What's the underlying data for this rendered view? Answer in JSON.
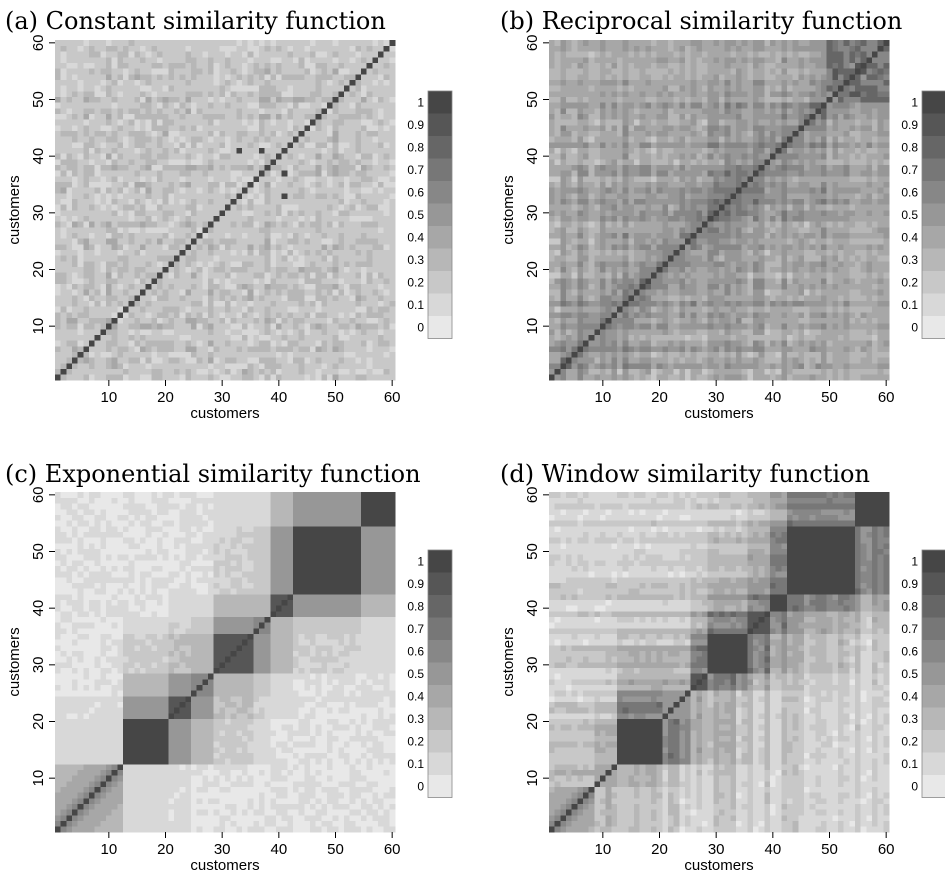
{
  "chart_data": [
    {
      "type": "heatmap",
      "title": "(a) Constant similarity function",
      "xlabel": "customers",
      "ylabel": "customers",
      "n": 60,
      "xlim": [
        1,
        60
      ],
      "ylim": [
        1,
        60
      ],
      "x_ticks": [
        10,
        20,
        30,
        40,
        50,
        60
      ],
      "y_ticks": [
        10,
        20,
        30,
        40,
        50,
        60
      ],
      "colorbar": {
        "levels": [
          0,
          0.1,
          0.2,
          0.3,
          0.4,
          0.5,
          0.6,
          0.7,
          0.8,
          0.9,
          1
        ],
        "labels": [
          "0",
          "0.1",
          "0.2",
          "0.3",
          "0.4",
          "0.5",
          "0.6",
          "0.7",
          "0.8",
          "0.9",
          "1"
        ],
        "range": [
          0,
          1
        ]
      },
      "pattern": "random",
      "diagonal": 1,
      "base": 0.12,
      "spread": 0.22,
      "seed": 7,
      "blocks": [],
      "outliers": [
        {
          "i": 33,
          "j": 41,
          "v": 1
        },
        {
          "i": 41,
          "j": 33,
          "v": 1
        },
        {
          "i": 37,
          "j": 41,
          "v": 1
        },
        {
          "i": 41,
          "j": 37,
          "v": 1
        }
      ],
      "grid": false,
      "legend": "right"
    },
    {
      "type": "heatmap",
      "title": "(b) Reciprocal similarity function",
      "xlabel": "customers",
      "ylabel": "customers",
      "n": 60,
      "xlim": [
        1,
        60
      ],
      "ylim": [
        1,
        60
      ],
      "x_ticks": [
        10,
        20,
        30,
        40,
        50,
        60
      ],
      "y_ticks": [
        10,
        20,
        30,
        40,
        50,
        60
      ],
      "colorbar": {
        "levels": [
          0,
          0.1,
          0.2,
          0.3,
          0.4,
          0.5,
          0.6,
          0.7,
          0.8,
          0.9,
          1
        ],
        "labels": [
          "0",
          "0.1",
          "0.2",
          "0.3",
          "0.4",
          "0.5",
          "0.6",
          "0.7",
          "0.8",
          "0.9",
          "1"
        ],
        "range": [
          0,
          1
        ]
      },
      "pattern": "reciprocal",
      "diagonal": 1,
      "base": 0.12,
      "spread": 0.3,
      "seed": 19,
      "blocks": [
        {
          "start": 50,
          "end": 60,
          "v": 0.88
        }
      ],
      "outliers": [],
      "grid": false,
      "legend": "right"
    },
    {
      "type": "heatmap",
      "title": "(c) Exponential similarity function",
      "xlabel": "customers",
      "ylabel": "customers",
      "n": 60,
      "xlim": [
        1,
        60
      ],
      "ylim": [
        1,
        60
      ],
      "x_ticks": [
        10,
        20,
        30,
        40,
        50,
        60
      ],
      "y_ticks": [
        10,
        20,
        30,
        40,
        50,
        60
      ],
      "colorbar": {
        "levels": [
          0,
          0.1,
          0.2,
          0.3,
          0.4,
          0.5,
          0.6,
          0.7,
          0.8,
          0.9,
          1
        ],
        "labels": [
          "0",
          "0.1",
          "0.2",
          "0.3",
          "0.4",
          "0.5",
          "0.6",
          "0.7",
          "0.8",
          "0.9",
          "1"
        ],
        "range": [
          0,
          1
        ]
      },
      "pattern": "blocks",
      "diagonal": 1,
      "base": 0.05,
      "spread": 0.04,
      "seed": 3,
      "blocks": [
        {
          "start": 1,
          "end": 12,
          "v": 0.2
        },
        {
          "start": 13,
          "end": 20,
          "v": 0.95
        },
        {
          "start": 21,
          "end": 24,
          "v": 0.85
        },
        {
          "start": 25,
          "end": 28,
          "v": 0.6
        },
        {
          "start": 29,
          "end": 35,
          "v": 0.9
        },
        {
          "start": 36,
          "end": 38,
          "v": 0.6
        },
        {
          "start": 39,
          "end": 42,
          "v": 0.9
        },
        {
          "start": 43,
          "end": 54,
          "v": 0.95
        },
        {
          "start": 55,
          "end": 60,
          "v": 0.95
        }
      ],
      "outliers": [],
      "grid": false,
      "legend": "right"
    },
    {
      "type": "heatmap",
      "title": "(d) Window similarity function",
      "xlabel": "customers",
      "ylabel": "customers",
      "n": 60,
      "xlim": [
        1,
        60
      ],
      "ylim": [
        1,
        60
      ],
      "x_ticks": [
        10,
        20,
        30,
        40,
        50,
        60
      ],
      "y_ticks": [
        10,
        20,
        30,
        40,
        50,
        60
      ],
      "colorbar": {
        "levels": [
          0,
          0.1,
          0.2,
          0.3,
          0.4,
          0.5,
          0.6,
          0.7,
          0.8,
          0.9,
          1
        ],
        "labels": [
          "0",
          "0.1",
          "0.2",
          "0.3",
          "0.4",
          "0.5",
          "0.6",
          "0.7",
          "0.8",
          "0.9",
          "1"
        ],
        "range": [
          0,
          1
        ]
      },
      "pattern": "window",
      "diagonal": 1,
      "base": 0.08,
      "spread": 0.1,
      "seed": 11,
      "blocks": [
        {
          "start": 1,
          "end": 8,
          "v": 0.35
        },
        {
          "start": 9,
          "end": 12,
          "v": 0.4
        },
        {
          "start": 13,
          "end": 20,
          "v": 0.95
        },
        {
          "start": 21,
          "end": 25,
          "v": 0.5
        },
        {
          "start": 26,
          "end": 28,
          "v": 0.85
        },
        {
          "start": 29,
          "end": 35,
          "v": 0.95
        },
        {
          "start": 36,
          "end": 39,
          "v": 0.9
        },
        {
          "start": 40,
          "end": 42,
          "v": 0.95
        },
        {
          "start": 43,
          "end": 54,
          "v": 0.95
        },
        {
          "start": 55,
          "end": 60,
          "v": 0.95
        }
      ],
      "outliers": [],
      "grid": false,
      "legend": "right"
    }
  ]
}
